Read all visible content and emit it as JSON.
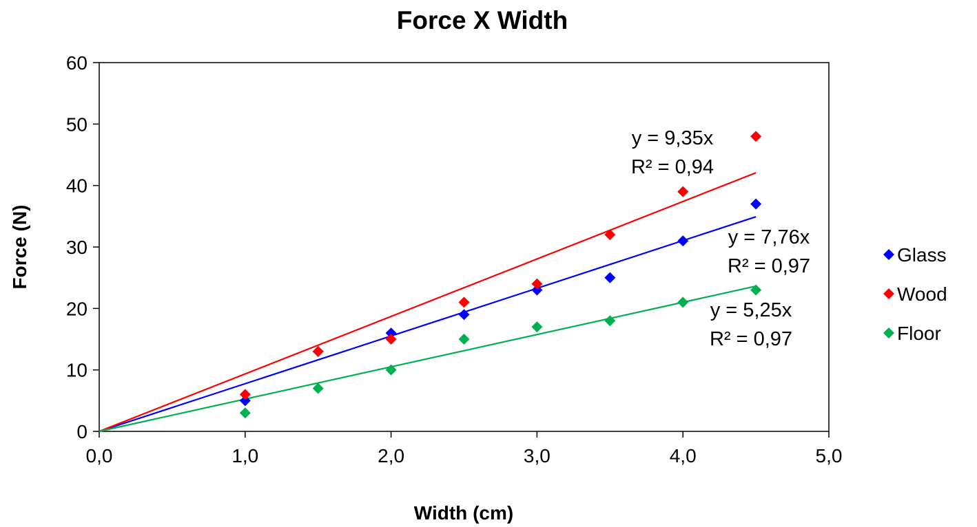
{
  "chart_data": {
    "type": "scatter",
    "title": "Force X Width",
    "xlabel": "Width (cm)",
    "ylabel": "Force (N)",
    "xlim": [
      0,
      5
    ],
    "ylim": [
      0,
      60
    ],
    "x_ticks": [
      0,
      1,
      2,
      3,
      4,
      5
    ],
    "x_tick_labels": [
      "0,0",
      "1,0",
      "2,0",
      "3,0",
      "4,0",
      "5,0"
    ],
    "y_ticks": [
      0,
      10,
      20,
      30,
      40,
      50,
      60
    ],
    "y_tick_labels": [
      "0",
      "10",
      "20",
      "30",
      "40",
      "50",
      "60"
    ],
    "grid": false,
    "legend_position": "right",
    "series": [
      {
        "name": "Glass",
        "color": "#0000ff",
        "marker": "diamond",
        "x": [
          1.0,
          1.5,
          2.0,
          2.5,
          3.0,
          3.5,
          4.0,
          4.5
        ],
        "y": [
          5,
          13,
          16,
          19,
          23,
          25,
          31,
          37
        ],
        "trendline": {
          "slope": 7.76,
          "equation": "y = 7,76x",
          "r2": "R² = 0,97"
        }
      },
      {
        "name": "Wood",
        "color": "#ff0000",
        "marker": "diamond",
        "x": [
          1.0,
          1.5,
          2.0,
          2.5,
          3.0,
          3.5,
          4.0,
          4.5
        ],
        "y": [
          6,
          13,
          15,
          21,
          24,
          32,
          39,
          48
        ],
        "trendline": {
          "slope": 9.35,
          "equation": "y = 9,35x",
          "r2": "R² = 0,94"
        }
      },
      {
        "name": "Floor",
        "color": "#00b050",
        "marker": "diamond",
        "x": [
          1.0,
          1.5,
          2.0,
          2.5,
          3.0,
          3.5,
          4.0,
          4.5
        ],
        "y": [
          3,
          7,
          10,
          15,
          17,
          18,
          21,
          23
        ],
        "trendline": {
          "slope": 5.25,
          "equation": "y = 5,25x",
          "r2": "R² = 0,97"
        }
      }
    ]
  }
}
